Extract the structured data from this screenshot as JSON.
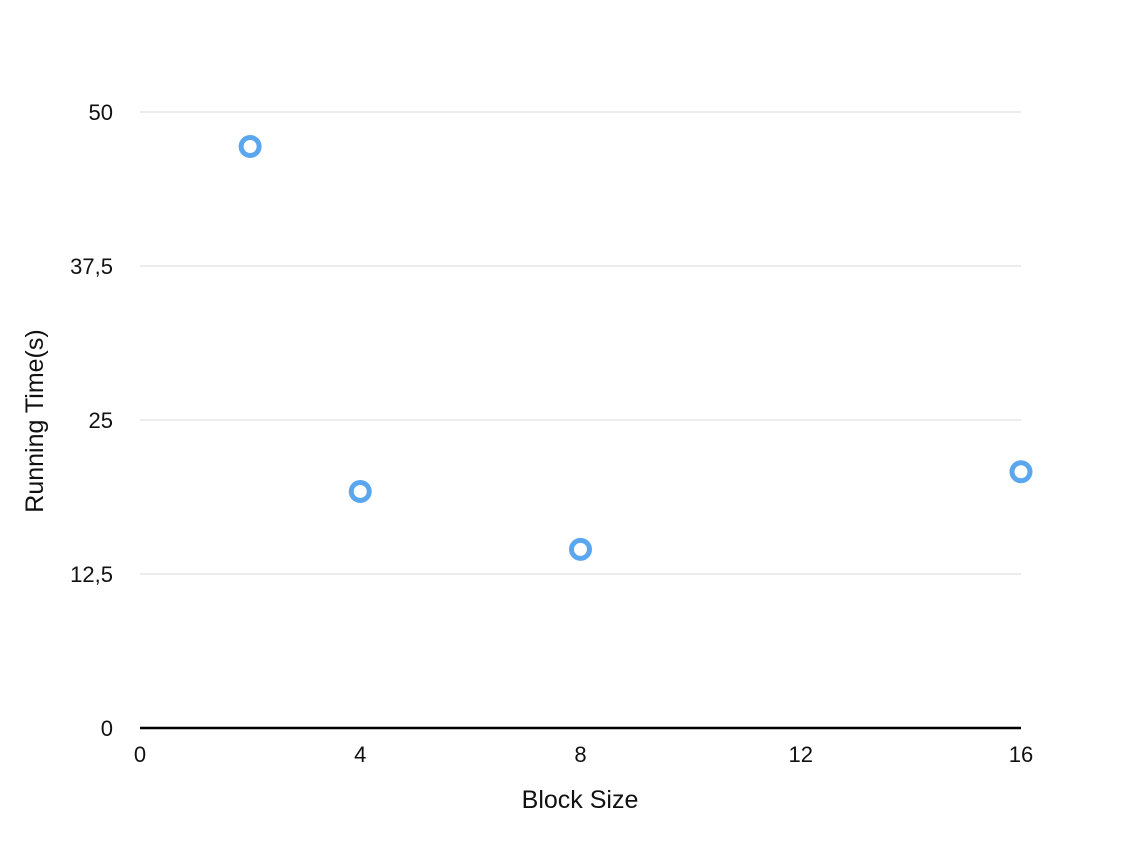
{
  "chart_data": {
    "type": "scatter",
    "title": "",
    "xlabel": "Block Size",
    "ylabel": "Running Time(s)",
    "xlim": [
      0,
      16
    ],
    "ylim": [
      0,
      50
    ],
    "x_ticks": [
      "0",
      "4",
      "8",
      "12",
      "16"
    ],
    "y_ticks": [
      "0",
      "12,5",
      "25",
      "37,5",
      "50"
    ],
    "x_tick_values": [
      0,
      4,
      8,
      12,
      16
    ],
    "y_tick_values": [
      0,
      12.5,
      25,
      37.5,
      50
    ],
    "grid": "horizontal",
    "legend": "none",
    "series": [
      {
        "color": "#5aa7f0",
        "marker": "open-circle",
        "points": [
          {
            "x": 2,
            "y": 47.2
          },
          {
            "x": 4,
            "y": 19.2
          },
          {
            "x": 8,
            "y": 14.5
          },
          {
            "x": 16,
            "y": 20.8
          }
        ]
      }
    ],
    "colors": {
      "grid": "#d8d8d8",
      "axis": "#000000",
      "marker": "#5aa7f0"
    }
  }
}
